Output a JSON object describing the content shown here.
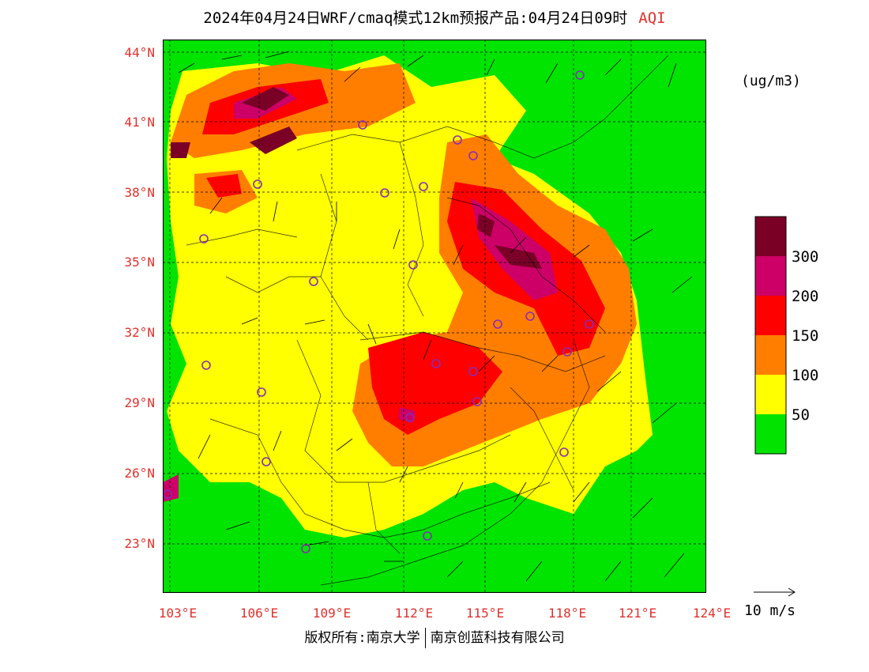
{
  "title": {
    "main": "2024年04月24日WRF/cmaq模式12km预报产品:04月24日09时",
    "variable": "AQI"
  },
  "units": "(ug/m3)",
  "lat_ticks": [
    "44°N",
    "41°N",
    "38°N",
    "35°N",
    "32°N",
    "29°N",
    "26°N",
    "23°N"
  ],
  "lon_ticks": [
    "103°E",
    "106°E",
    "109°E",
    "112°E",
    "115°E",
    "118°E",
    "121°E",
    "124°E"
  ],
  "legend": {
    "labels": [
      "300",
      "200",
      "150",
      "100",
      "50"
    ],
    "colors": {
      "very_unhealthy": "#7a0026",
      "unhealthy_plus": "#cc0066",
      "unhealthy": "#ff0000",
      "moderate_poor": "#ff7e00",
      "moderate": "#ffff00",
      "good": "#00e400"
    }
  },
  "wind_reference": "10 m/s",
  "copyright": {
    "left": "版权所有:南京大学",
    "right": "南京创蓝科技有限公司"
  }
}
